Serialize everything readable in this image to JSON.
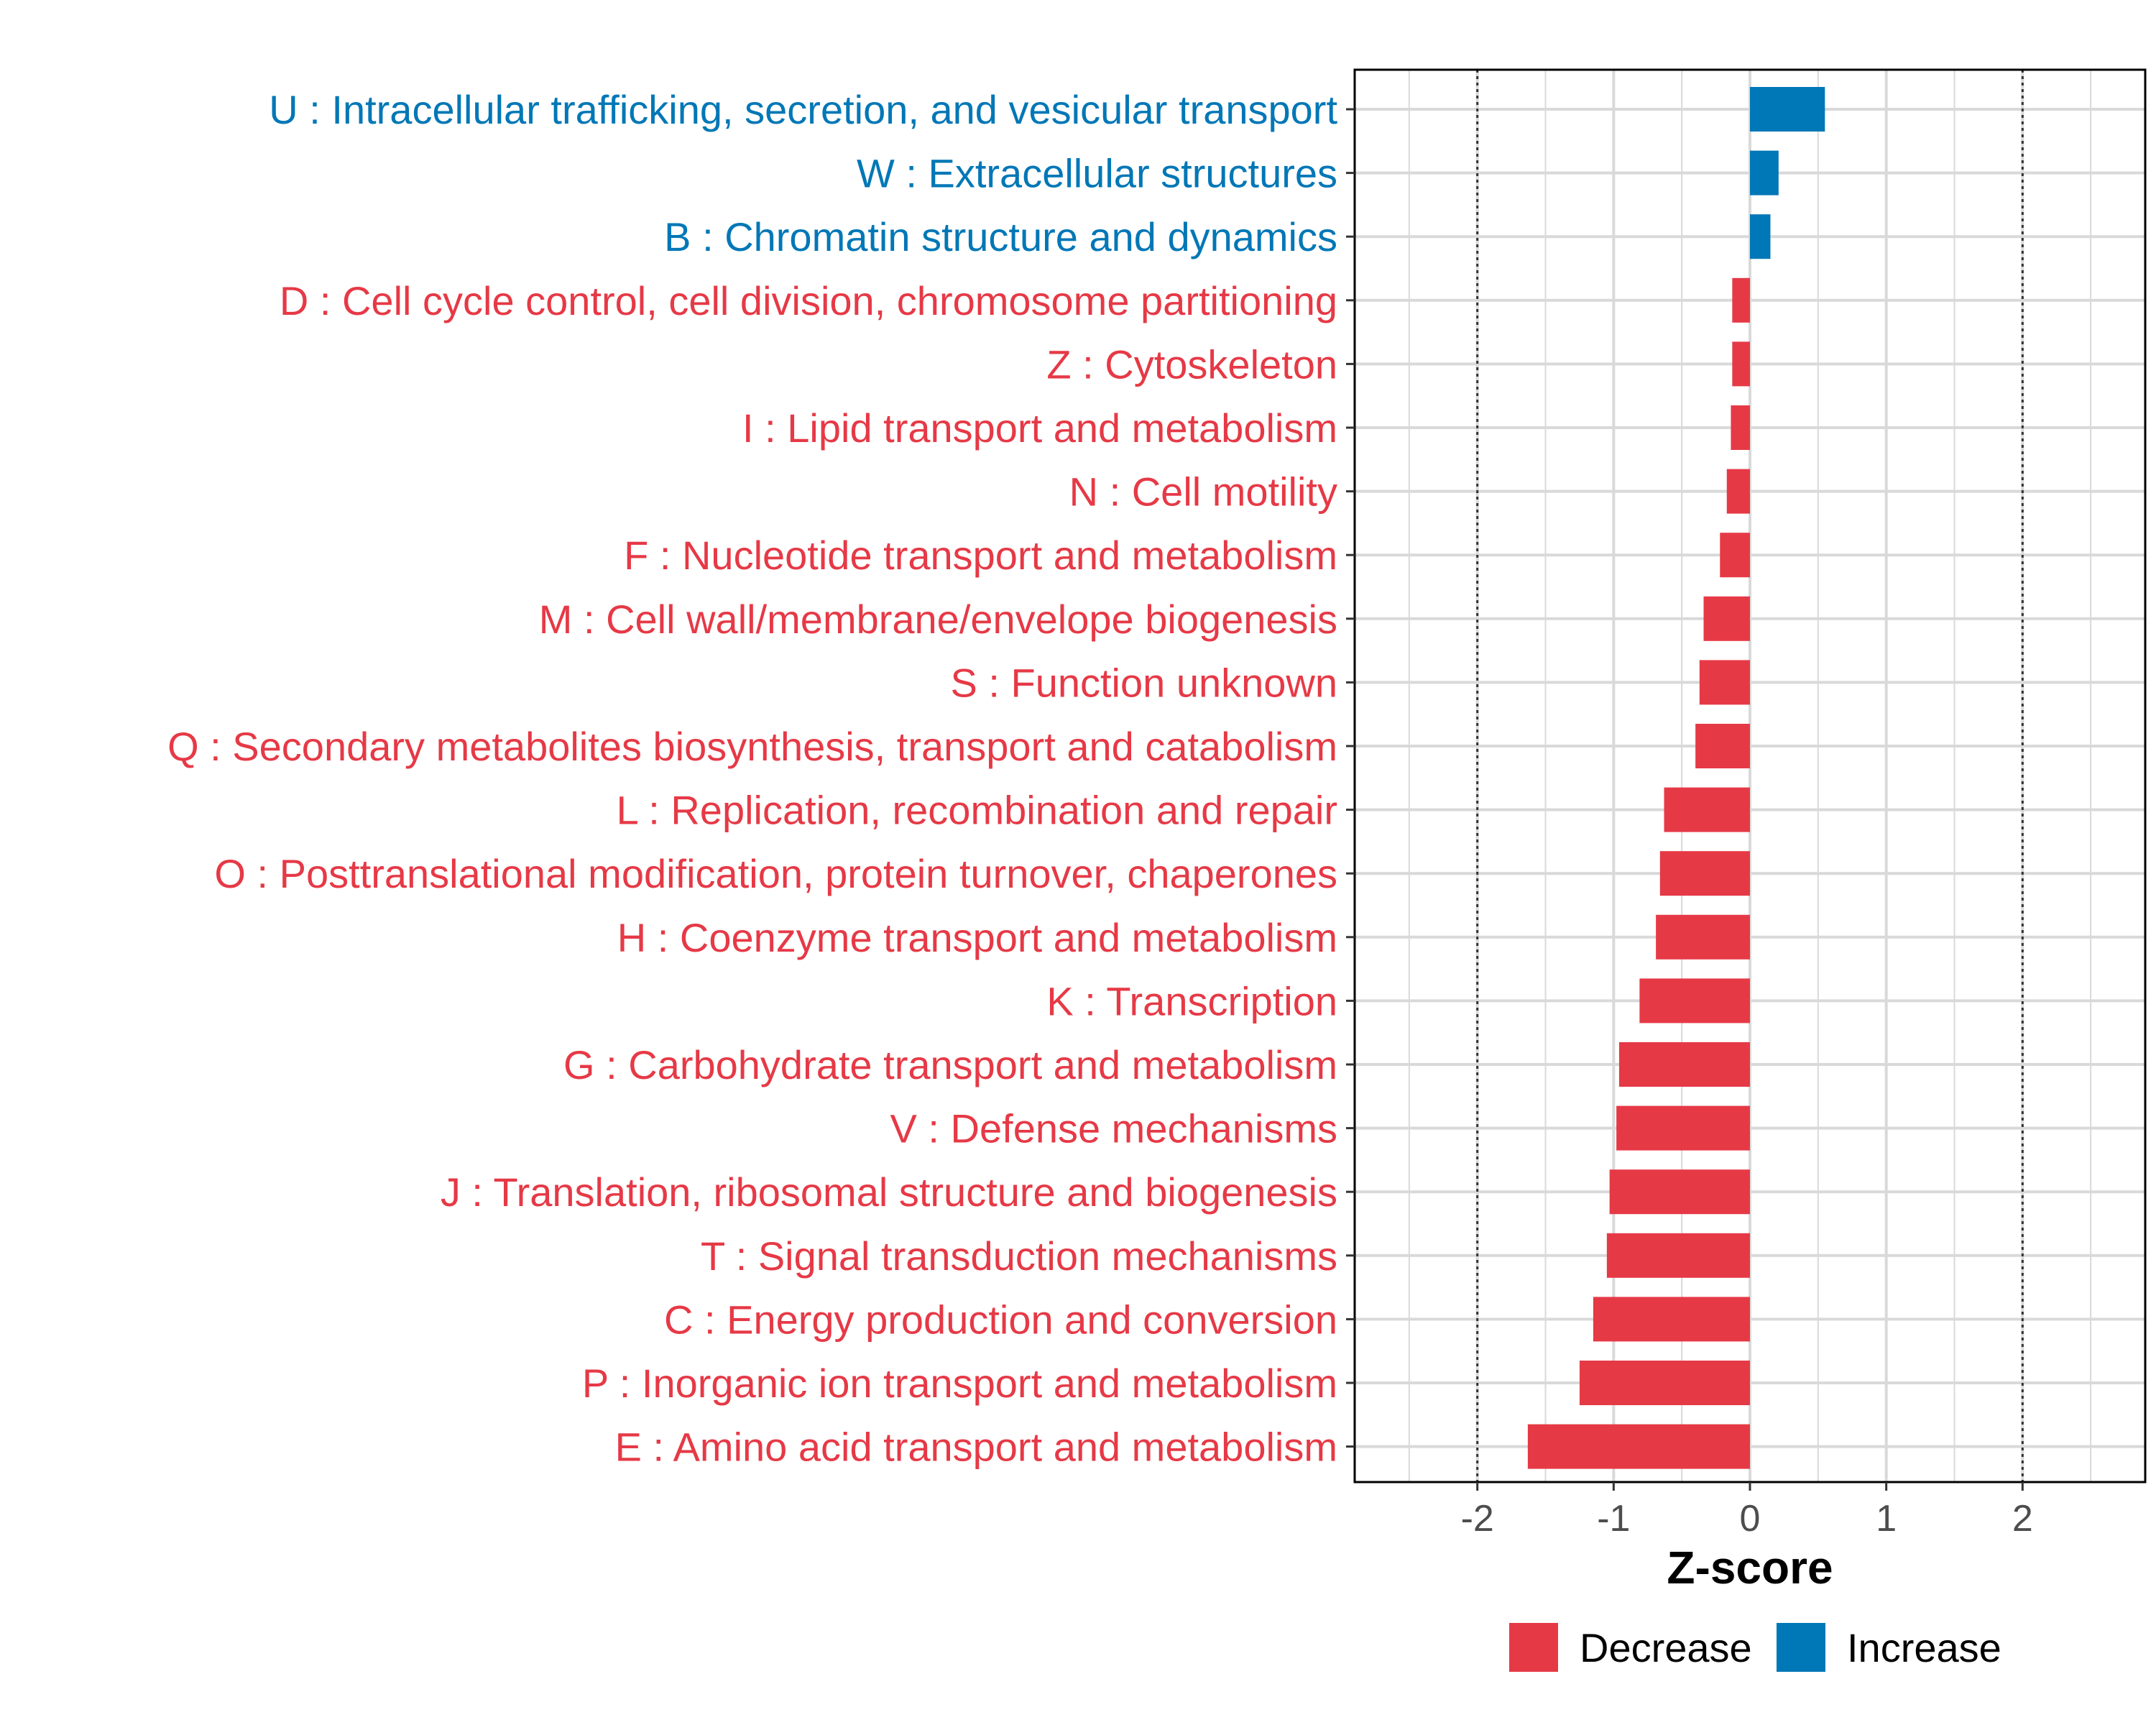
{
  "chart_data": {
    "type": "bar",
    "orientation": "horizontal",
    "xlabel": "Z-score",
    "xlim": [
      -2.9,
      2.9
    ],
    "xticks": [
      -2,
      -1,
      0,
      1,
      2
    ],
    "xtick_labels": [
      "-2",
      "-1",
      "0",
      "1",
      "2"
    ],
    "reference_lines": [
      -2,
      2
    ],
    "grid": true,
    "legend_position": "bottom",
    "colors": {
      "Decrease": "#E63946",
      "Increase": "#0077B6"
    },
    "legend": [
      {
        "label": "Decrease",
        "color": "#E63946"
      },
      {
        "label": "Increase",
        "color": "#0077B6"
      }
    ],
    "categories": [
      "U : Intracellular trafficking, secretion, and vesicular transport",
      "W : Extracellular structures",
      "B : Chromatin structure and dynamics",
      "D : Cell cycle control, cell division, chromosome partitioning",
      "Z : Cytoskeleton",
      "I : Lipid transport and metabolism",
      "N : Cell motility",
      "F : Nucleotide transport and metabolism",
      "M : Cell wall/membrane/envelope biogenesis",
      "S : Function unknown",
      "Q : Secondary metabolites biosynthesis, transport and catabolism",
      "L : Replication, recombination and repair",
      "O : Posttranslational modification, protein turnover, chaperones",
      "H : Coenzyme transport and metabolism",
      "K : Transcription",
      "G : Carbohydrate transport and metabolism",
      "V : Defense mechanisms",
      "J : Translation, ribosomal structure and biogenesis",
      "T : Signal transduction mechanisms",
      "C : Energy production and conversion",
      "P : Inorganic ion transport and metabolism",
      "E : Amino acid transport and metabolism"
    ],
    "values": [
      0.55,
      0.21,
      0.15,
      -0.13,
      -0.13,
      -0.14,
      -0.17,
      -0.22,
      -0.34,
      -0.37,
      -0.4,
      -0.63,
      -0.66,
      -0.69,
      -0.81,
      -0.96,
      -0.98,
      -1.03,
      -1.05,
      -1.15,
      -1.25,
      -1.63
    ],
    "direction": [
      "Increase",
      "Increase",
      "Increase",
      "Decrease",
      "Decrease",
      "Decrease",
      "Decrease",
      "Decrease",
      "Decrease",
      "Decrease",
      "Decrease",
      "Decrease",
      "Decrease",
      "Decrease",
      "Decrease",
      "Decrease",
      "Decrease",
      "Decrease",
      "Decrease",
      "Decrease",
      "Decrease",
      "Decrease"
    ]
  }
}
